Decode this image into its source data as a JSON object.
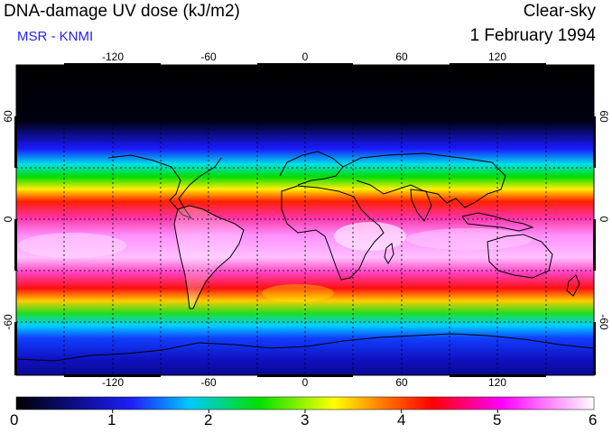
{
  "header": {
    "title": "DNA-damage UV dose (kJ/m2)",
    "subtitle": "MSR - KNMI",
    "condition": "Clear-sky",
    "date": "1 February 1994"
  },
  "map": {
    "lon_ticks": [
      "-120",
      "-60",
      "0",
      "60",
      "120"
    ],
    "lat_ticks_left": [
      "60",
      "0",
      "-60"
    ],
    "lat_ticks_right": [
      "60",
      "0",
      "-60"
    ]
  },
  "colorbar": {
    "labels": [
      "0",
      "1",
      "2",
      "3",
      "4",
      "5",
      "6"
    ],
    "stops": [
      "#000000",
      "#1f1ff0",
      "#00e8ff",
      "#00dd00",
      "#ffff00",
      "#ff8000",
      "#ff0000",
      "#ff00ff",
      "#ffffff"
    ]
  }
}
